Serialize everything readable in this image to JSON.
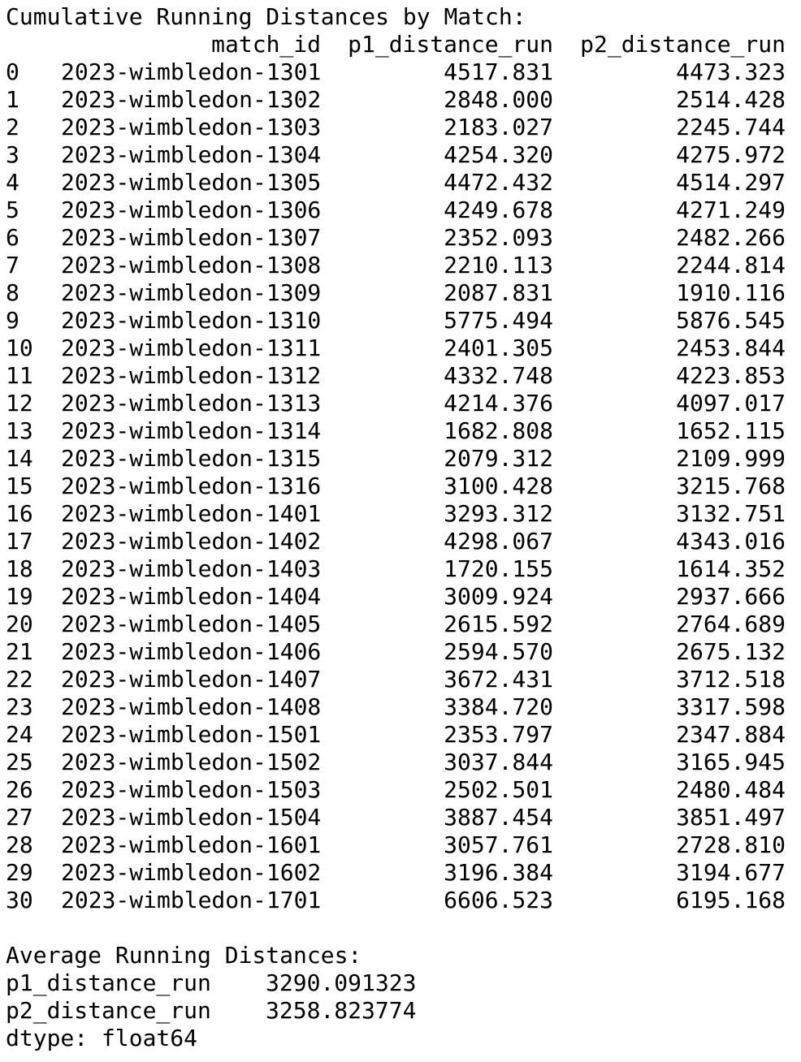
{
  "title": "Cumulative Running Distances by Match:",
  "columns": {
    "index": "",
    "match_id": "match_id",
    "p1": "p1_distance_run",
    "p2": "p2_distance_run"
  },
  "rows": [
    {
      "idx": "0",
      "match_id": "2023-wimbledon-1301",
      "p1": "4517.831",
      "p2": "4473.323"
    },
    {
      "idx": "1",
      "match_id": "2023-wimbledon-1302",
      "p1": "2848.000",
      "p2": "2514.428"
    },
    {
      "idx": "2",
      "match_id": "2023-wimbledon-1303",
      "p1": "2183.027",
      "p2": "2245.744"
    },
    {
      "idx": "3",
      "match_id": "2023-wimbledon-1304",
      "p1": "4254.320",
      "p2": "4275.972"
    },
    {
      "idx": "4",
      "match_id": "2023-wimbledon-1305",
      "p1": "4472.432",
      "p2": "4514.297"
    },
    {
      "idx": "5",
      "match_id": "2023-wimbledon-1306",
      "p1": "4249.678",
      "p2": "4271.249"
    },
    {
      "idx": "6",
      "match_id": "2023-wimbledon-1307",
      "p1": "2352.093",
      "p2": "2482.266"
    },
    {
      "idx": "7",
      "match_id": "2023-wimbledon-1308",
      "p1": "2210.113",
      "p2": "2244.814"
    },
    {
      "idx": "8",
      "match_id": "2023-wimbledon-1309",
      "p1": "2087.831",
      "p2": "1910.116"
    },
    {
      "idx": "9",
      "match_id": "2023-wimbledon-1310",
      "p1": "5775.494",
      "p2": "5876.545"
    },
    {
      "idx": "10",
      "match_id": "2023-wimbledon-1311",
      "p1": "2401.305",
      "p2": "2453.844"
    },
    {
      "idx": "11",
      "match_id": "2023-wimbledon-1312",
      "p1": "4332.748",
      "p2": "4223.853"
    },
    {
      "idx": "12",
      "match_id": "2023-wimbledon-1313",
      "p1": "4214.376",
      "p2": "4097.017"
    },
    {
      "idx": "13",
      "match_id": "2023-wimbledon-1314",
      "p1": "1682.808",
      "p2": "1652.115"
    },
    {
      "idx": "14",
      "match_id": "2023-wimbledon-1315",
      "p1": "2079.312",
      "p2": "2109.999"
    },
    {
      "idx": "15",
      "match_id": "2023-wimbledon-1316",
      "p1": "3100.428",
      "p2": "3215.768"
    },
    {
      "idx": "16",
      "match_id": "2023-wimbledon-1401",
      "p1": "3293.312",
      "p2": "3132.751"
    },
    {
      "idx": "17",
      "match_id": "2023-wimbledon-1402",
      "p1": "4298.067",
      "p2": "4343.016"
    },
    {
      "idx": "18",
      "match_id": "2023-wimbledon-1403",
      "p1": "1720.155",
      "p2": "1614.352"
    },
    {
      "idx": "19",
      "match_id": "2023-wimbledon-1404",
      "p1": "3009.924",
      "p2": "2937.666"
    },
    {
      "idx": "20",
      "match_id": "2023-wimbledon-1405",
      "p1": "2615.592",
      "p2": "2764.689"
    },
    {
      "idx": "21",
      "match_id": "2023-wimbledon-1406",
      "p1": "2594.570",
      "p2": "2675.132"
    },
    {
      "idx": "22",
      "match_id": "2023-wimbledon-1407",
      "p1": "3672.431",
      "p2": "3712.518"
    },
    {
      "idx": "23",
      "match_id": "2023-wimbledon-1408",
      "p1": "3384.720",
      "p2": "3317.598"
    },
    {
      "idx": "24",
      "match_id": "2023-wimbledon-1501",
      "p1": "2353.797",
      "p2": "2347.884"
    },
    {
      "idx": "25",
      "match_id": "2023-wimbledon-1502",
      "p1": "3037.844",
      "p2": "3165.945"
    },
    {
      "idx": "26",
      "match_id": "2023-wimbledon-1503",
      "p1": "2502.501",
      "p2": "2480.484"
    },
    {
      "idx": "27",
      "match_id": "2023-wimbledon-1504",
      "p1": "3887.454",
      "p2": "3851.497"
    },
    {
      "idx": "28",
      "match_id": "2023-wimbledon-1601",
      "p1": "3057.761",
      "p2": "2728.810"
    },
    {
      "idx": "29",
      "match_id": "2023-wimbledon-1602",
      "p1": "3196.384",
      "p2": "3194.677"
    },
    {
      "idx": "30",
      "match_id": "2023-wimbledon-1701",
      "p1": "6606.523",
      "p2": "6195.168"
    }
  ],
  "summary": {
    "title": "Average Running Distances:",
    "items": [
      {
        "key": "p1_distance_run",
        "value": "3290.091323"
      },
      {
        "key": "p2_distance_run",
        "value": "3258.823774"
      }
    ],
    "dtype": "dtype: float64"
  }
}
